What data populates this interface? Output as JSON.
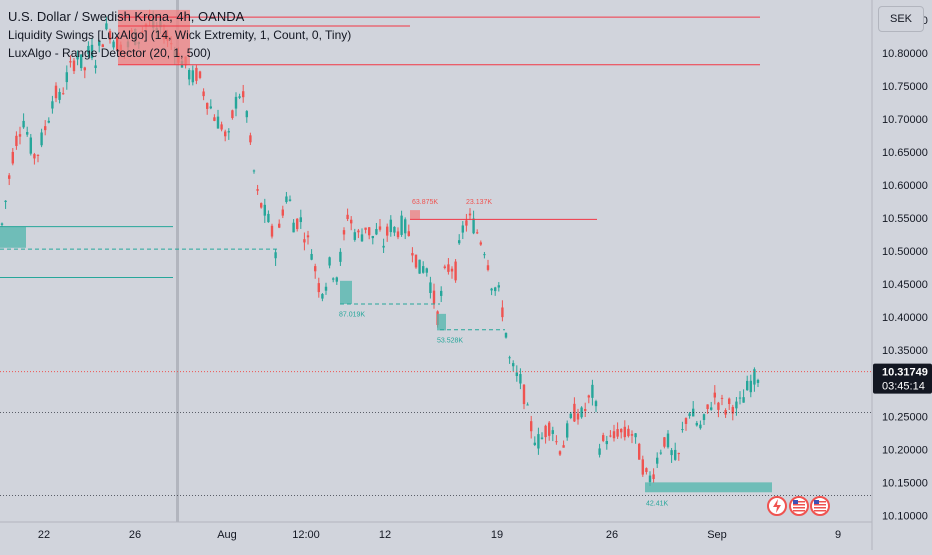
{
  "legend": {
    "title": "U.S. Dollar / Swedish Krona, 4h, OANDA",
    "indicator1": "Liquidity Swings [LuxAlgo] (14, Wick Extremity, 1, Count, 0, Tiny)",
    "indicator2": "LuxAlgo - Range Detector (20, 1, 500)"
  },
  "currency_button": "SEK",
  "price_tag": {
    "price": "10.31749",
    "countdown": "03:45:14"
  },
  "chart_data": {
    "type": "candlestick",
    "title": "U.S. Dollar / Swedish Krona, 4h, OANDA",
    "ylim": [
      10.09,
      10.88
    ],
    "y_ticks": [
      "10.85000",
      "10.80000",
      "10.75000",
      "10.70000",
      "10.65000",
      "10.60000",
      "10.55000",
      "10.50000",
      "10.45000",
      "10.40000",
      "10.35000",
      "10.30000",
      "10.25000",
      "10.20000",
      "10.15000",
      "10.10000"
    ],
    "x_ticks": [
      "22",
      "26",
      "Aug",
      "12:00",
      "12",
      "19",
      "26",
      "Sep",
      "9"
    ],
    "colors": {
      "up": "#26a69a",
      "down": "#ef5350",
      "zone": "#4db6ac",
      "level": "#f23645"
    },
    "price_path": [
      [
        0,
        10.52
      ],
      [
        6,
        10.58
      ],
      [
        12,
        10.64
      ],
      [
        18,
        10.68
      ],
      [
        24,
        10.7
      ],
      [
        30,
        10.66
      ],
      [
        36,
        10.64
      ],
      [
        42,
        10.67
      ],
      [
        48,
        10.7
      ],
      [
        54,
        10.74
      ],
      [
        60,
        10.73
      ],
      [
        66,
        10.76
      ],
      [
        72,
        10.78
      ],
      [
        78,
        10.8
      ],
      [
        84,
        10.77
      ],
      [
        90,
        10.81
      ],
      [
        96,
        10.79
      ],
      [
        102,
        10.82
      ],
      [
        108,
        10.84
      ],
      [
        114,
        10.82
      ],
      [
        120,
        10.81
      ],
      [
        126,
        10.8
      ],
      [
        132,
        10.83
      ],
      [
        138,
        10.82
      ],
      [
        144,
        10.84
      ],
      [
        150,
        10.85
      ],
      [
        156,
        10.83
      ],
      [
        162,
        10.84
      ],
      [
        168,
        10.82
      ],
      [
        174,
        10.81
      ],
      [
        180,
        10.79
      ],
      [
        186,
        10.78
      ],
      [
        192,
        10.76
      ],
      [
        198,
        10.77
      ],
      [
        204,
        10.74
      ],
      [
        210,
        10.72
      ],
      [
        216,
        10.7
      ],
      [
        222,
        10.69
      ],
      [
        228,
        10.66
      ],
      [
        234,
        10.72
      ],
      [
        240,
        10.74
      ],
      [
        246,
        10.72
      ],
      [
        252,
        10.64
      ],
      [
        258,
        10.58
      ],
      [
        264,
        10.56
      ],
      [
        270,
        10.54
      ],
      [
        276,
        10.5
      ],
      [
        282,
        10.56
      ],
      [
        288,
        10.59
      ],
      [
        294,
        10.54
      ],
      [
        300,
        10.55
      ],
      [
        306,
        10.52
      ],
      [
        312,
        10.5
      ],
      [
        318,
        10.45
      ],
      [
        324,
        10.44
      ],
      [
        330,
        10.48
      ],
      [
        336,
        10.46
      ],
      [
        342,
        10.5
      ],
      [
        348,
        10.56
      ],
      [
        354,
        10.53
      ],
      [
        360,
        10.52
      ],
      [
        366,
        10.54
      ],
      [
        372,
        10.52
      ],
      [
        378,
        10.53
      ],
      [
        384,
        10.51
      ],
      [
        390,
        10.54
      ],
      [
        396,
        10.53
      ],
      [
        402,
        10.54
      ],
      [
        408,
        10.53
      ],
      [
        414,
        10.5
      ],
      [
        420,
        10.47
      ],
      [
        426,
        10.48
      ],
      [
        432,
        10.44
      ],
      [
        438,
        10.4
      ],
      [
        444,
        10.46
      ],
      [
        450,
        10.48
      ],
      [
        456,
        10.47
      ],
      [
        462,
        10.53
      ],
      [
        468,
        10.55
      ],
      [
        474,
        10.54
      ],
      [
        480,
        10.52
      ],
      [
        486,
        10.5
      ],
      [
        492,
        10.45
      ],
      [
        498,
        10.44
      ],
      [
        504,
        10.4
      ],
      [
        510,
        10.33
      ],
      [
        516,
        10.31
      ],
      [
        522,
        10.3
      ],
      [
        528,
        10.25
      ],
      [
        534,
        10.22
      ],
      [
        540,
        10.21
      ],
      [
        546,
        10.23
      ],
      [
        552,
        10.24
      ],
      [
        558,
        10.2
      ],
      [
        564,
        10.21
      ],
      [
        570,
        10.24
      ],
      [
        576,
        10.26
      ],
      [
        582,
        10.25
      ],
      [
        588,
        10.27
      ],
      [
        594,
        10.29
      ],
      [
        600,
        10.2
      ],
      [
        606,
        10.22
      ],
      [
        612,
        10.21
      ],
      [
        618,
        10.23
      ],
      [
        624,
        10.22
      ],
      [
        630,
        10.23
      ],
      [
        636,
        10.21
      ],
      [
        642,
        10.18
      ],
      [
        648,
        10.15
      ],
      [
        654,
        10.17
      ],
      [
        660,
        10.2
      ],
      [
        666,
        10.22
      ],
      [
        672,
        10.19
      ],
      [
        678,
        10.18
      ],
      [
        684,
        10.24
      ],
      [
        690,
        10.26
      ],
      [
        696,
        10.24
      ],
      [
        702,
        10.23
      ],
      [
        708,
        10.26
      ],
      [
        714,
        10.28
      ],
      [
        720,
        10.27
      ],
      [
        726,
        10.26
      ],
      [
        732,
        10.27
      ],
      [
        738,
        10.26
      ],
      [
        744,
        10.28
      ],
      [
        750,
        10.3
      ],
      [
        756,
        10.31
      ],
      [
        762,
        10.32
      ]
    ],
    "levels": [
      {
        "price": 10.854,
        "x_start": 118,
        "x_end": 760,
        "style": "solid"
      },
      {
        "price": 10.782,
        "x_start": 118,
        "x_end": 760,
        "style": "solid"
      },
      {
        "price": 10.548,
        "x_start": 410,
        "x_end": 597,
        "style": "solid"
      }
    ],
    "support_lines": [
      {
        "price": 10.537,
        "x_start": 0,
        "x_end": 173,
        "style": "solid"
      },
      {
        "price": 10.503,
        "x_start": 0,
        "x_end": 280,
        "style": "dashed"
      },
      {
        "price": 10.46,
        "x_start": 0,
        "x_end": 173,
        "style": "solid"
      },
      {
        "price": 10.42,
        "x_start": 340,
        "x_end": 440,
        "style": "dashed"
      },
      {
        "price": 10.381,
        "x_start": 440,
        "x_end": 505,
        "style": "dashed"
      }
    ],
    "zones": [
      {
        "top": 10.537,
        "bottom": 10.505,
        "x_start": 0,
        "x_end": 26,
        "color": "#4db6ac"
      },
      {
        "top": 10.455,
        "bottom": 10.42,
        "x_start": 340,
        "x_end": 352,
        "color": "#4db6ac"
      },
      {
        "top": 10.405,
        "bottom": 10.38,
        "x_start": 437,
        "x_end": 446,
        "color": "#4db6ac"
      },
      {
        "top": 10.15,
        "bottom": 10.135,
        "x_start": 645,
        "x_end": 772,
        "color": "#4db6ac"
      },
      {
        "top": 10.865,
        "bottom": 10.782,
        "x_start": 118,
        "x_end": 190,
        "color": "#f08080"
      },
      {
        "top": 10.562,
        "bottom": 10.548,
        "x_start": 410,
        "x_end": 420,
        "color": "#f08080"
      }
    ],
    "annotations": [
      {
        "text": "63.875K",
        "x": 412,
        "price": 10.571,
        "color": "#ef5350"
      },
      {
        "text": "23.137K",
        "x": 466,
        "price": 10.571,
        "color": "#ef5350"
      },
      {
        "text": "87.019K",
        "x": 339,
        "price": 10.401,
        "color": "#26a69a"
      },
      {
        "text": "53.528K",
        "x": 437,
        "price": 10.362,
        "color": "#26a69a"
      },
      {
        "text": "42.41K",
        "x": 646,
        "price": 10.115,
        "color": "#26a69a"
      }
    ],
    "current_price": 10.31749,
    "dotted_levels": [
      10.256,
      10.13
    ]
  }
}
